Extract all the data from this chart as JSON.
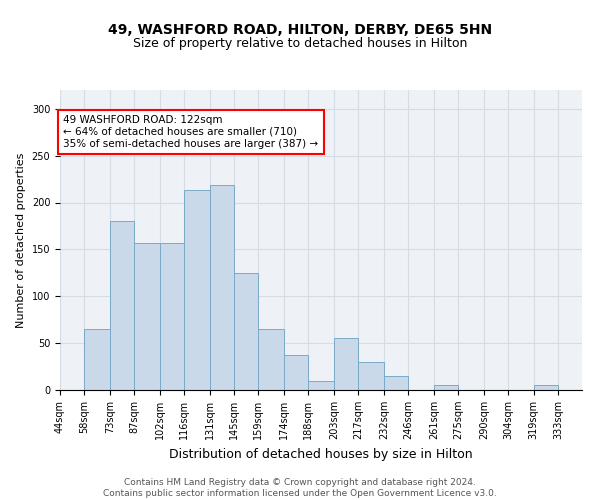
{
  "title1": "49, WASHFORD ROAD, HILTON, DERBY, DE65 5HN",
  "title2": "Size of property relative to detached houses in Hilton",
  "xlabel": "Distribution of detached houses by size in Hilton",
  "ylabel": "Number of detached properties",
  "annotation_line1": "49 WASHFORD ROAD: 122sqm",
  "annotation_line2": "← 64% of detached houses are smaller (710)",
  "annotation_line3": "35% of semi-detached houses are larger (387) →",
  "property_size": 122,
  "bin_edges": [
    44,
    58,
    73,
    87,
    102,
    116,
    131,
    145,
    159,
    174,
    188,
    203,
    217,
    232,
    246,
    261,
    275,
    290,
    304,
    319,
    333,
    347
  ],
  "bar_heights": [
    0,
    65,
    180,
    157,
    157,
    213,
    219,
    125,
    65,
    37,
    10,
    55,
    30,
    15,
    0,
    5,
    0,
    0,
    0,
    5,
    0
  ],
  "bar_color": "#c9d9ea",
  "bar_edge_color": "#7aaac8",
  "grid_color": "#d4dde6",
  "bg_color": "#eef2f7",
  "footer_text": "Contains HM Land Registry data © Crown copyright and database right 2024.\nContains public sector information licensed under the Open Government Licence v3.0.",
  "ylim": [
    0,
    320
  ],
  "yticks": [
    0,
    50,
    100,
    150,
    200,
    250,
    300
  ],
  "title1_fontsize": 10,
  "title2_fontsize": 9,
  "xlabel_fontsize": 9,
  "ylabel_fontsize": 8,
  "tick_fontsize": 7,
  "footer_fontsize": 6.5
}
